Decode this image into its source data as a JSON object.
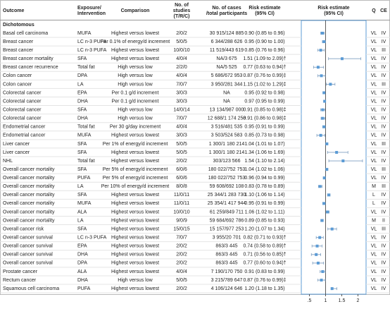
{
  "columns": [
    [
      "Outcome"
    ],
    [
      "Exposure/",
      "Intervention"
    ],
    [
      "Comparison"
    ],
    [
      "No. of",
      "studies",
      "(T/R/C)"
    ],
    [
      "No. of cases",
      "/total participants"
    ],
    [
      "Risk estimate",
      "(95% CI)"
    ],
    [
      "Risk estimate",
      "(95% CI)"
    ],
    [
      "Q"
    ],
    [
      "CE"
    ]
  ],
  "section": "Dichotomous",
  "rows": [
    {
      "outcome": "Basal cell carcinoma",
      "exposure": "MUFA",
      "comparison": "Highest versus lowest",
      "studies": "2/0/2",
      "cases": "30 915/124 885",
      "risk": {
        "label": "0.90 (0.85 to 0.96)",
        "est": 0.9,
        "lo": 0.85,
        "hi": 0.96
      },
      "q": "VL",
      "ce": "IV"
    },
    {
      "outcome": "Breast cancer",
      "exposure": "LC n-3 PUFA",
      "comparison": "Per 0.1% of energy/d increment",
      "studies": "5/0/5",
      "cases": "6 344/288 626",
      "risk": {
        "label": "0.95 (0.90 to 1.00)",
        "est": 0.95,
        "lo": 0.9,
        "hi": 1.0
      },
      "q": "VL",
      "ce": "IV"
    },
    {
      "outcome": "Breast cancer",
      "exposure": "LC n-3 PUFA",
      "comparison": "Highest versus lowest",
      "studies": "10/0/10",
      "cases": "11 519/443 619",
      "risk": {
        "label": "0.85 (0.76 to 0.96)",
        "est": 0.85,
        "lo": 0.76,
        "hi": 0.96
      },
      "q": "VL",
      "ce": "III"
    },
    {
      "outcome": "Breast cancer mortality",
      "exposure": "SFA",
      "comparison": "Highest versus lowest",
      "studies": "4/0/4",
      "cases": "NA/3 675",
      "risk": {
        "label": "1.51 (1.09 to 2.09)†",
        "est": 1.51,
        "lo": 1.09,
        "hi": 2.09
      },
      "q": "VL",
      "ce": "IV"
    },
    {
      "outcome": "Breast cancer recurrence",
      "exposure": "Total fat",
      "comparison": "High versus low",
      "studies": "2/2/0",
      "cases": "NA/5 525",
      "risk": {
        "label": "0.77 (0.63 to 0.94)†",
        "est": 0.77,
        "lo": 0.63,
        "hi": 0.94
      },
      "q": "VL",
      "ce": "IV"
    },
    {
      "outcome": "Colon cancer",
      "exposure": "DPA",
      "comparison": "High versus low",
      "studies": "4/0/4",
      "cases": "5 686/672 953",
      "risk": {
        "label": "0.87 (0.76 to 0.99)‡",
        "est": 0.87,
        "lo": 0.76,
        "hi": 0.99
      },
      "q": "VL",
      "ce": "IV"
    },
    {
      "outcome": "Colon cancer",
      "exposure": "LA",
      "comparison": "High versus low",
      "studies": "7/0/7",
      "cases": "3 950/281 344",
      "risk": {
        "label": "1.15 (1.02 to 1.29)‡",
        "est": 1.15,
        "lo": 1.02,
        "hi": 1.29
      },
      "q": "VL",
      "ce": "III"
    },
    {
      "outcome": "Colorectal cancer",
      "exposure": "EPA",
      "comparison": "Per 0.1 g/d increment",
      "studies": "3/0/3",
      "cases": "NA",
      "risk": {
        "label": "0.95 (0.92 to 0.98)",
        "est": 0.95,
        "lo": 0.92,
        "hi": 0.98
      },
      "q": "VL",
      "ce": "IV"
    },
    {
      "outcome": "Colorectal cancer",
      "exposure": "DHA",
      "comparison": "Per 0.1 g/d increment",
      "studies": "3/0/3",
      "cases": "NA",
      "risk": {
        "label": "0.97 (0.95 to 0.99)",
        "est": 0.97,
        "lo": 0.95,
        "hi": 0.99
      },
      "q": "VL",
      "ce": "IV"
    },
    {
      "outcome": "Colorectal cancer",
      "exposure": "SFA",
      "comparison": "High versus low",
      "studies": "14/0/14",
      "cases": "13 134/987 000",
      "risk": {
        "label": "0.91 (0.85 to 0.98)‡",
        "est": 0.91,
        "lo": 0.85,
        "hi": 0.98
      },
      "q": "VL",
      "ce": "IV"
    },
    {
      "outcome": "Colorectal cancer",
      "exposure": "DHA",
      "comparison": "High versus low",
      "studies": "7/0/7",
      "cases": "12 688/1 174 258",
      "risk": {
        "label": "0.91 (0.86 to 0.98)‡",
        "est": 0.91,
        "lo": 0.86,
        "hi": 0.98
      },
      "q": "VL",
      "ce": "IV"
    },
    {
      "outcome": "Endometrial cancer",
      "exposure": "Total fat",
      "comparison": "Per 30 g/day increment",
      "studies": "4/0/4",
      "cases": "3 516/481 535",
      "risk": {
        "label": "0.95 (0.91 to 0.99)",
        "est": 0.95,
        "lo": 0.91,
        "hi": 0.99
      },
      "q": "VL",
      "ce": "IV"
    },
    {
      "outcome": "Endometrial cancer",
      "exposure": "MUFA",
      "comparison": "Highest versus lowest",
      "studies": "3/0/3",
      "cases": "3 503/524 583",
      "risk": {
        "label": "0.85 (0.73 to 0.98)",
        "est": 0.85,
        "lo": 0.73,
        "hi": 0.98
      },
      "q": "VL",
      "ce": "IV"
    },
    {
      "outcome": "Liver cancer",
      "exposure": "SFA",
      "comparison": "Per 1% of energy/d increment",
      "studies": "5/0/5",
      "cases": "1 300/1 180 214",
      "risk": {
        "label": "1.04 (1.01 to 1.07)",
        "est": 1.04,
        "lo": 1.01,
        "hi": 1.07
      },
      "q": "VL",
      "ce": "III"
    },
    {
      "outcome": "Liver cancer",
      "exposure": "SFA",
      "comparison": "Highest versus lowest",
      "studies": "5/0/5",
      "cases": "1 300/1 180 214",
      "risk": {
        "label": "1.34 (1.06 to 1.69)",
        "est": 1.34,
        "lo": 1.06,
        "hi": 1.69
      },
      "q": "VL",
      "ce": "IV"
    },
    {
      "outcome": "NHL",
      "exposure": "Total fat",
      "comparison": "Highest versus lowest",
      "studies": "2/0/2",
      "cases": "303/123 566",
      "risk": {
        "label": "1.54 (1.10 to 2.14)",
        "est": 1.54,
        "lo": 1.1,
        "hi": 2.14
      },
      "q": "VL",
      "ce": "IV"
    },
    {
      "outcome": "Overall cancer mortality",
      "exposure": "SFA",
      "comparison": "Per 5% of energy/d increment",
      "studies": "6/0/6",
      "cases": "180 022/752 753",
      "risk": {
        "label": "1.04 (1.02 to 1.06)",
        "est": 1.04,
        "lo": 1.02,
        "hi": 1.06
      },
      "q": "VL",
      "ce": "III"
    },
    {
      "outcome": "Overall cancer mortality",
      "exposure": "PUFA",
      "comparison": "Per 5% of energy/d increment",
      "studies": "6/0/6",
      "cases": "180 022/752 753",
      "risk": {
        "label": "0.96 (0.94 to 0.99)",
        "est": 0.96,
        "lo": 0.94,
        "hi": 0.99
      },
      "q": "VL",
      "ce": "IV"
    },
    {
      "outcome": "Overall cancer mortality",
      "exposure": "LA",
      "comparison": "Per 10% of energy/d increment",
      "studies": "8/0/8",
      "cases": "59 608/692 108",
      "risk": {
        "label": "0.83 (0.78 to 0.89)",
        "est": 0.83,
        "lo": 0.78,
        "hi": 0.89
      },
      "q": "M",
      "ce": "III"
    },
    {
      "outcome": "Overall cancer mortality",
      "exposure": "SFA",
      "comparison": "Highest versus lowest",
      "studies": "11/0/11",
      "cases": "25 344/1 283 730",
      "risk": {
        "label": "1.10 (1.06 to 1.14)",
        "est": 1.1,
        "lo": 1.06,
        "hi": 1.14
      },
      "q": "L",
      "ce": "IV"
    },
    {
      "outcome": "Overall cancer mortality",
      "exposure": "MUFA",
      "comparison": "Highest versus lowest",
      "studies": "11/0/11",
      "cases": "25 354/1 417 944",
      "risk": {
        "label": "0.95 (0.91 to 0.99)",
        "est": 0.95,
        "lo": 0.91,
        "hi": 0.99
      },
      "q": "L",
      "ce": "IV"
    },
    {
      "outcome": "Overall cancer mortality",
      "exposure": "ALA",
      "comparison": "Highest versus lowest",
      "studies": "10/0/10",
      "cases": "61 259/849 711",
      "risk": {
        "label": "1.06 (1.02 to 1.11)",
        "est": 1.06,
        "lo": 1.02,
        "hi": 1.11
      },
      "q": "VL",
      "ce": "IV"
    },
    {
      "outcome": "Overall cancer mortality",
      "exposure": "LA",
      "comparison": "Highest versus lowest",
      "studies": "9/0/9",
      "cases": "59 684/692 786",
      "risk": {
        "label": "0.89 (0.85 to 0.93)",
        "est": 0.89,
        "lo": 0.85,
        "hi": 0.93
      },
      "q": "M",
      "ce": "II"
    },
    {
      "outcome": "Overall cancer risk",
      "exposure": "SFA",
      "comparison": "Highest versus lowest",
      "studies": "15/0/15",
      "cases": "15 157/977 253",
      "risk": {
        "label": "1.20 (1.07 to 1.34)",
        "est": 1.2,
        "lo": 1.07,
        "hi": 1.34
      },
      "q": "VL",
      "ce": "III"
    },
    {
      "outcome": "Overall cancer survival",
      "exposure": "LC n-3 PUFA",
      "comparison": "Highest versus lowest",
      "studies": "7/0/7",
      "cases": "3 955/20 701",
      "risk": {
        "label": "0.82 (0.71 to 0.93)†",
        "est": 0.82,
        "lo": 0.71,
        "hi": 0.93
      },
      "q": "VL",
      "ce": "IV"
    },
    {
      "outcome": "Overall cancer survival",
      "exposure": "EPA",
      "comparison": "Highest versus lowest",
      "studies": "2/0/2",
      "cases": "863/3 445",
      "risk": {
        "label": "0.74 (0.58 to 0.89)†",
        "est": 0.74,
        "lo": 0.58,
        "hi": 0.89
      },
      "q": "VL",
      "ce": "IV"
    },
    {
      "outcome": "Overall cancer survival",
      "exposure": "DHA",
      "comparison": "Highest versus lowest",
      "studies": "2/0/2",
      "cases": "863/3 445",
      "risk": {
        "label": "0.71 (0.56 to 0.85)†",
        "est": 0.71,
        "lo": 0.56,
        "hi": 0.85
      },
      "q": "VL",
      "ce": "IV"
    },
    {
      "outcome": "Overall cancer survival",
      "exposure": "DPA",
      "comparison": "Highest versus lowest",
      "studies": "2/0/2",
      "cases": "863/3 445",
      "risk": {
        "label": "0.77 (0.60 to 0.94)†",
        "est": 0.77,
        "lo": 0.6,
        "hi": 0.94
      },
      "q": "VL",
      "ce": "IV"
    },
    {
      "outcome": "Prostate cancer",
      "exposure": "ALA",
      "comparison": "Highest versus lowest",
      "studies": "4/0/4",
      "cases": "7 190/170 750",
      "risk": {
        "label": "0.91 (0.83 to 0.99)",
        "est": 0.91,
        "lo": 0.83,
        "hi": 0.99
      },
      "q": "VL",
      "ce": "IV"
    },
    {
      "outcome": "Rectum cancer",
      "exposure": "DHA",
      "comparison": "High versus low",
      "studies": "5/0/5",
      "cases": "3 215/789 647",
      "risk": {
        "label": "0.87 (0.76 to 0.99)‡",
        "est": 0.87,
        "lo": 0.76,
        "hi": 0.99
      },
      "q": "VL",
      "ce": "IV"
    },
    {
      "outcome": "Squamous cell carcinoma",
      "exposure": "PUFA",
      "comparison": "Highest versus lowest",
      "studies": "2/0/2",
      "cases": "4 106/124 646",
      "risk": {
        "label": "1.20 (1.18 to 1.35)",
        "est": 1.2,
        "lo": 1.18,
        "hi": 1.35
      },
      "q": "VL",
      "ce": "IV"
    }
  ],
  "forest": {
    "xlim": [
      0.25,
      2.25
    ],
    "xticks": [
      {
        "value": 0.5,
        "label": ".5"
      },
      1,
      1.5,
      2
    ]
  }
}
